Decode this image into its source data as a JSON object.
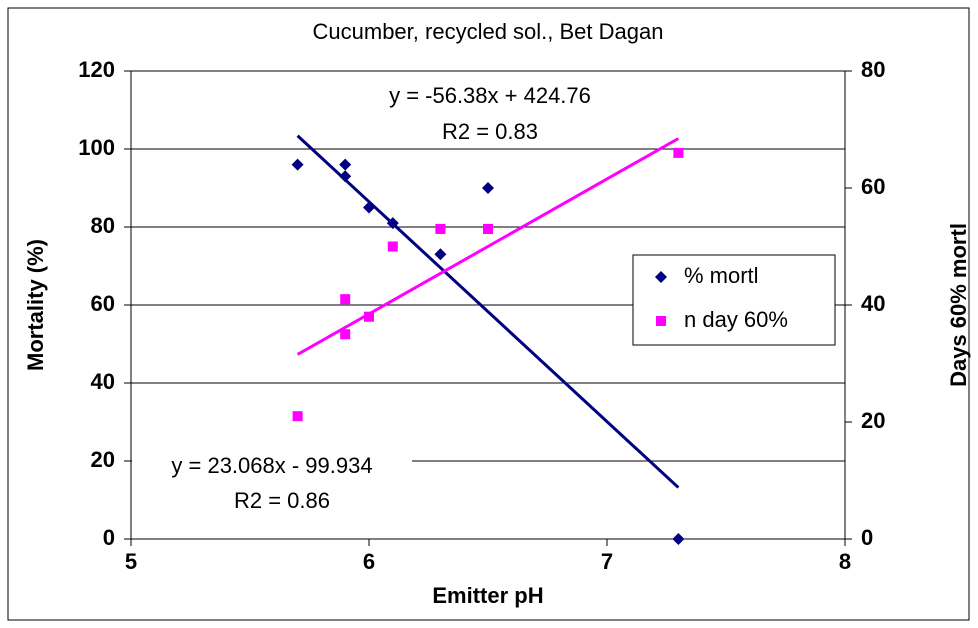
{
  "chart_data": {
    "type": "scatter",
    "title": "Cucumber, recycled sol., Bet Dagan",
    "x_label": "Emitter pH",
    "y_label": "Mortality (%)",
    "y2_label": "Days 60% mortl",
    "xlim": [
      5,
      8
    ],
    "xticks": [
      5,
      6,
      7,
      8
    ],
    "ylim": [
      0,
      120
    ],
    "yticks": [
      0,
      20,
      40,
      60,
      80,
      100,
      120
    ],
    "y2lim": [
      0,
      80
    ],
    "y2ticks": [
      0,
      20,
      40,
      60,
      80
    ],
    "grid": true,
    "legend": "right",
    "series": [
      {
        "name": "% mortl",
        "color": "#000080",
        "marker": "diamond",
        "axis": "y",
        "x": [
          5.7,
          5.9,
          5.9,
          6.0,
          6.1,
          6.3,
          6.5,
          7.3
        ],
        "values": [
          96,
          96,
          93,
          85,
          81,
          73,
          90,
          0
        ],
        "trendline": {
          "slope": -56.38,
          "intercept": 424.76,
          "label": "y = -56.38x + 424.76",
          "r2_label": "R2 = 0.83"
        }
      },
      {
        "name": "n day 60%",
        "color": "#ff00ff",
        "marker": "square",
        "axis": "y2",
        "x": [
          5.7,
          5.9,
          5.9,
          6.0,
          6.1,
          6.3,
          6.5,
          7.3
        ],
        "values": [
          21,
          41,
          35,
          38,
          50,
          53,
          53,
          66
        ],
        "trendline": {
          "slope": 23.068,
          "intercept": -99.934,
          "label": "y = 23.068x - 99.934",
          "r2_label": "R2 = 0.86"
        }
      }
    ]
  }
}
